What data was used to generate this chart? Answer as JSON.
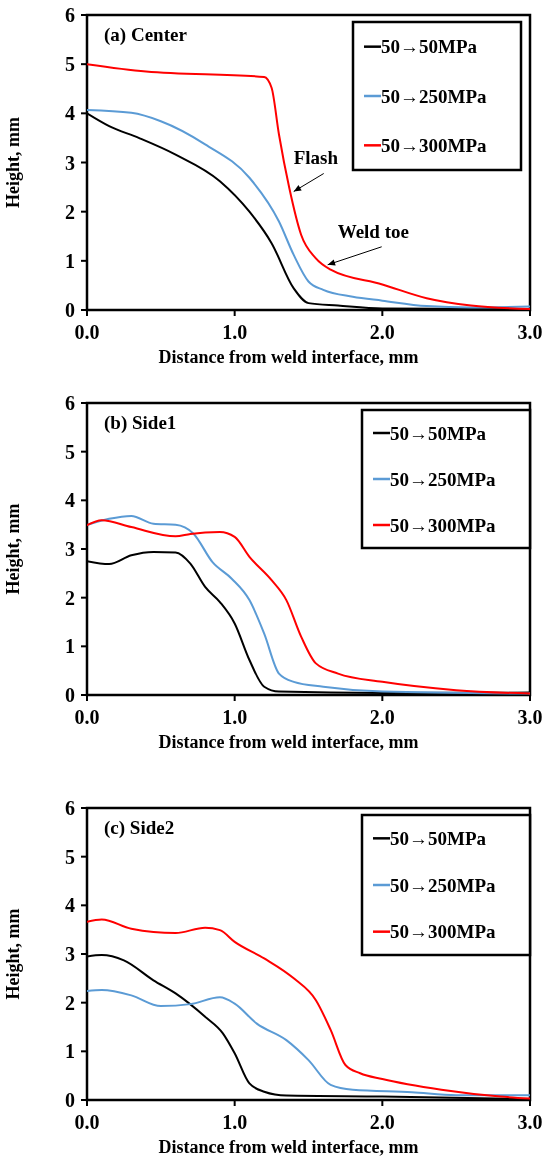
{
  "chart_data": [
    {
      "type": "line",
      "title": "(a) Center",
      "xlabel": "Distance from weld interface, mm",
      "ylabel": "Height, mm",
      "xlim": [
        0,
        3
      ],
      "ylim": [
        0,
        6
      ],
      "xticks": [
        {
          "value": 0,
          "label": "0.0"
        },
        {
          "value": 1,
          "label": "1.0"
        },
        {
          "value": 2,
          "label": "2.0"
        },
        {
          "value": 3,
          "label": "3.0"
        }
      ],
      "yticks": [
        0,
        1,
        2,
        3,
        4,
        5,
        6
      ],
      "legend": "top right",
      "grid": false,
      "line_style": "solid",
      "annotations": [
        {
          "text": "Flash",
          "x": 1.4,
          "y": 2.41
        },
        {
          "text": "Weld toe",
          "x": 1.63,
          "y": 0.92
        }
      ],
      "series": [
        {
          "name": "50→50MPa",
          "color": "#000000",
          "x": [
            0,
            0.15,
            0.35,
            0.6,
            0.9,
            1.1,
            1.25,
            1.4,
            1.5,
            1.7,
            2.0,
            3.0
          ],
          "values": [
            4.0,
            3.74,
            3.5,
            3.16,
            2.62,
            2.0,
            1.36,
            0.44,
            0.14,
            0.09,
            0.03,
            0.02
          ]
        },
        {
          "name": "50→250MPa",
          "color": "#5b9bd5",
          "x": [
            0,
            0.3,
            0.5,
            0.8,
            1.1,
            1.3,
            1.4,
            1.5,
            1.6,
            1.8,
            2.0,
            2.3,
            2.6,
            3.0
          ],
          "values": [
            4.07,
            4.01,
            3.84,
            3.37,
            2.69,
            1.8,
            1.12,
            0.58,
            0.41,
            0.27,
            0.19,
            0.08,
            0.05,
            0.07
          ]
        },
        {
          "name": "50→300MPa",
          "color": "#ff0000",
          "x": [
            0,
            0.4,
            1.2,
            1.25,
            1.3,
            1.37,
            1.45,
            1.55,
            1.65,
            2.0,
            2.3,
            2.6,
            3.0
          ],
          "values": [
            5.0,
            4.85,
            4.74,
            4.52,
            3.57,
            2.48,
            1.53,
            1.05,
            0.82,
            0.52,
            0.24,
            0.09,
            0.02
          ]
        }
      ]
    },
    {
      "type": "line",
      "title": "(b) Side1",
      "xlabel": "Distance from weld interface, mm",
      "ylabel": "Height, mm",
      "xlim": [
        0,
        3
      ],
      "ylim": [
        0,
        6
      ],
      "xticks": [
        {
          "value": 0,
          "label": "0.0"
        },
        {
          "value": 1,
          "label": "1.0"
        },
        {
          "value": 2,
          "label": "2.0"
        },
        {
          "value": 3,
          "label": "3.0"
        }
      ],
      "yticks": [
        0,
        1,
        2,
        3,
        4,
        5,
        6
      ],
      "legend": "top right",
      "grid": false,
      "line_style": "solid",
      "series": [
        {
          "name": "50→50MPa",
          "color": "#000000",
          "x": [
            0,
            0.15,
            0.3,
            0.45,
            0.6,
            0.7,
            0.8,
            0.9,
            1.0,
            1.1,
            1.2,
            1.3,
            2.0,
            3.0
          ],
          "values": [
            2.75,
            2.69,
            2.87,
            2.94,
            2.93,
            2.7,
            2.22,
            1.91,
            1.47,
            0.72,
            0.17,
            0.07,
            0.04,
            0.05
          ]
        },
        {
          "name": "50→250MPa",
          "color": "#5b9bd5",
          "x": [
            0,
            0.15,
            0.3,
            0.45,
            0.6,
            0.72,
            0.85,
            0.98,
            1.1,
            1.2,
            1.3,
            1.4,
            1.6,
            2.0,
            3.0
          ],
          "values": [
            3.49,
            3.62,
            3.68,
            3.52,
            3.5,
            3.32,
            2.73,
            2.39,
            1.95,
            1.26,
            0.44,
            0.27,
            0.17,
            0.07,
            0.03
          ]
        },
        {
          "name": "50→300MPa",
          "color": "#ff0000",
          "x": [
            0,
            0.1,
            0.3,
            0.6,
            0.7,
            0.9,
            1.0,
            1.1,
            1.25,
            1.35,
            1.45,
            1.55,
            1.7,
            2.0,
            2.5,
            3.0
          ],
          "values": [
            3.49,
            3.59,
            3.45,
            3.26,
            3.31,
            3.35,
            3.25,
            2.84,
            2.36,
            1.95,
            1.2,
            0.65,
            0.44,
            0.27,
            0.1,
            0.03
          ]
        }
      ]
    },
    {
      "type": "line",
      "title": "(c) Side2",
      "xlabel": "Distance from weld interface, mm",
      "ylabel": "Height, mm",
      "xlim": [
        0,
        3
      ],
      "ylim": [
        0,
        6
      ],
      "xticks": [
        {
          "value": 0,
          "label": "0.0"
        },
        {
          "value": 1,
          "label": "1.0"
        },
        {
          "value": 2,
          "label": "2.0"
        },
        {
          "value": 3,
          "label": "3.0"
        }
      ],
      "yticks": [
        0,
        1,
        2,
        3,
        4,
        5,
        6
      ],
      "legend": "top right",
      "grid": false,
      "line_style": "solid",
      "series": [
        {
          "name": "50→50MPa",
          "color": "#000000",
          "x": [
            0,
            0.1,
            0.25,
            0.45,
            0.6,
            0.8,
            0.92,
            1.0,
            1.1,
            1.2,
            1.35,
            2.0,
            3.0
          ],
          "values": [
            2.95,
            2.98,
            2.87,
            2.46,
            2.19,
            1.71,
            1.37,
            0.96,
            0.34,
            0.17,
            0.09,
            0.07,
            0.02
          ]
        },
        {
          "name": "50→250MPa",
          "color": "#5b9bd5",
          "x": [
            0,
            0.1,
            0.3,
            0.5,
            0.7,
            0.9,
            1.0,
            1.15,
            1.35,
            1.5,
            1.65,
            1.8,
            2.2,
            2.5,
            3.0
          ],
          "values": [
            2.24,
            2.26,
            2.15,
            1.93,
            1.97,
            2.11,
            1.98,
            1.57,
            1.23,
            0.82,
            0.31,
            0.21,
            0.16,
            0.1,
            0.1
          ]
        },
        {
          "name": "50→300MPa",
          "color": "#ff0000",
          "x": [
            0,
            0.1,
            0.3,
            0.6,
            0.8,
            0.9,
            1.0,
            1.2,
            1.4,
            1.55,
            1.65,
            1.75,
            1.85,
            2.0,
            2.4,
            2.8,
            3.0
          ],
          "values": [
            3.66,
            3.71,
            3.52,
            3.43,
            3.54,
            3.49,
            3.25,
            2.91,
            2.5,
            2.05,
            1.44,
            0.72,
            0.55,
            0.43,
            0.21,
            0.07,
            0.03
          ]
        }
      ]
    }
  ]
}
